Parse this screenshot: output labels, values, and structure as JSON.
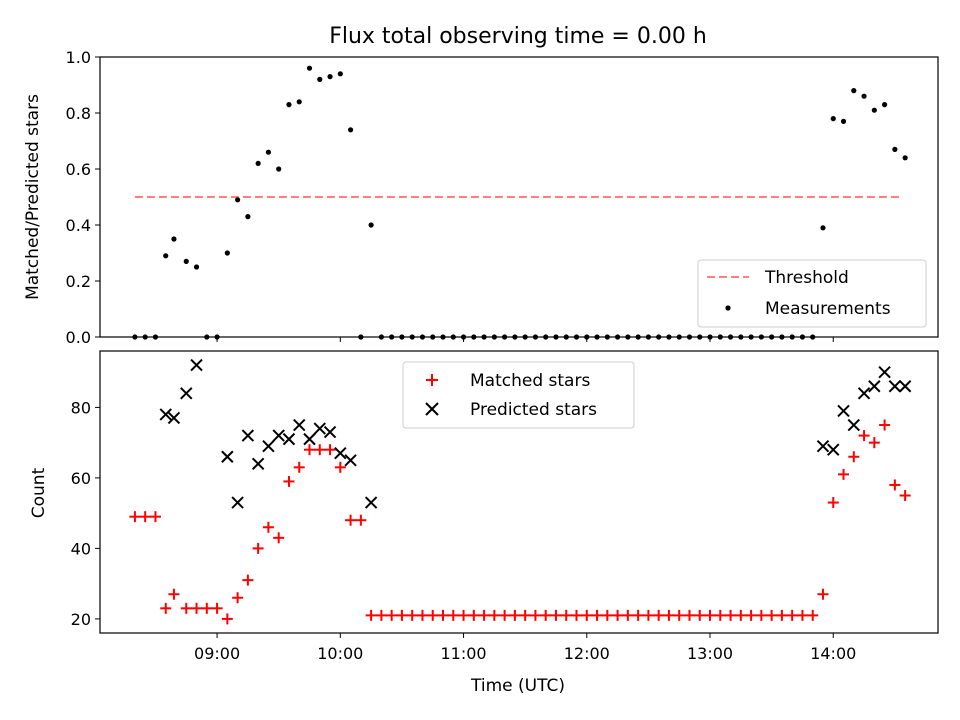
{
  "title": "Flux total observing time = 0.00 h",
  "chart_data": [
    {
      "type": "scatter",
      "ylabel": "Matched/Predicted stars",
      "xlabel": "",
      "ylim": [
        0,
        1.0
      ],
      "yticks": [
        "0.0",
        "0.2",
        "0.4",
        "0.6",
        "0.8",
        "1.0"
      ],
      "yticks_values": [
        0,
        0.2,
        0.4,
        0.6,
        0.8,
        1.0
      ],
      "legend_position": "lower-right",
      "grid": false,
      "threshold": {
        "name": "Threshold",
        "value": 0.5,
        "x_start": "08:20",
        "x_end": "14:33",
        "color": "#ff7f7f",
        "style": "dashed"
      },
      "series": [
        {
          "name": "Measurements",
          "color": "#000000",
          "marker": "dot",
          "points": [
            [
              "08:20",
              0.0
            ],
            [
              "08:25",
              0.0
            ],
            [
              "08:30",
              0.0
            ],
            [
              "08:35",
              0.29
            ],
            [
              "08:39",
              0.35
            ],
            [
              "08:45",
              0.27
            ],
            [
              "08:50",
              0.25
            ],
            [
              "08:55",
              0.0
            ],
            [
              "09:00",
              0.0
            ],
            [
              "09:05",
              0.3
            ],
            [
              "09:10",
              0.49
            ],
            [
              "09:15",
              0.43
            ],
            [
              "09:20",
              0.62
            ],
            [
              "09:25",
              0.66
            ],
            [
              "09:30",
              0.6
            ],
            [
              "09:35",
              0.83
            ],
            [
              "09:40",
              0.84
            ],
            [
              "09:45",
              0.96
            ],
            [
              "09:50",
              0.92
            ],
            [
              "09:55",
              0.93
            ],
            [
              "10:00",
              0.94
            ],
            [
              "10:05",
              0.74
            ],
            [
              "10:10",
              0.0
            ],
            [
              "10:15",
              0.4
            ],
            [
              "10:20",
              0.0
            ],
            [
              "10:25",
              0.0
            ],
            [
              "10:30",
              0.0
            ],
            [
              "10:35",
              0.0
            ],
            [
              "10:40",
              0.0
            ],
            [
              "10:45",
              0.0
            ],
            [
              "10:50",
              0.0
            ],
            [
              "10:55",
              0.0
            ],
            [
              "11:00",
              0.0
            ],
            [
              "11:05",
              0.0
            ],
            [
              "11:10",
              0.0
            ],
            [
              "11:15",
              0.0
            ],
            [
              "11:20",
              0.0
            ],
            [
              "11:25",
              0.0
            ],
            [
              "11:30",
              0.0
            ],
            [
              "11:35",
              0.0
            ],
            [
              "11:40",
              0.0
            ],
            [
              "11:45",
              0.0
            ],
            [
              "11:50",
              0.0
            ],
            [
              "11:55",
              0.0
            ],
            [
              "12:00",
              0.0
            ],
            [
              "12:05",
              0.0
            ],
            [
              "12:10",
              0.0
            ],
            [
              "12:15",
              0.0
            ],
            [
              "12:20",
              0.0
            ],
            [
              "12:25",
              0.0
            ],
            [
              "12:30",
              0.0
            ],
            [
              "12:35",
              0.0
            ],
            [
              "12:40",
              0.0
            ],
            [
              "12:45",
              0.0
            ],
            [
              "12:50",
              0.0
            ],
            [
              "12:55",
              0.0
            ],
            [
              "13:00",
              0.0
            ],
            [
              "13:05",
              0.0
            ],
            [
              "13:10",
              0.0
            ],
            [
              "13:15",
              0.0
            ],
            [
              "13:20",
              0.0
            ],
            [
              "13:25",
              0.0
            ],
            [
              "13:30",
              0.0
            ],
            [
              "13:35",
              0.0
            ],
            [
              "13:40",
              0.0
            ],
            [
              "13:45",
              0.0
            ],
            [
              "13:50",
              0.0
            ],
            [
              "13:55",
              0.39
            ],
            [
              "14:00",
              0.78
            ],
            [
              "14:05",
              0.77
            ],
            [
              "14:10",
              0.88
            ],
            [
              "14:15",
              0.86
            ],
            [
              "14:20",
              0.81
            ],
            [
              "14:25",
              0.83
            ],
            [
              "14:30",
              0.67
            ],
            [
              "14:35",
              0.64
            ]
          ]
        }
      ]
    },
    {
      "type": "scatter",
      "ylabel": "Count",
      "xlabel": "Time (UTC)",
      "ylim": [
        16,
        96
      ],
      "yticks": [
        "20",
        "40",
        "60",
        "80"
      ],
      "yticks_values": [
        20,
        40,
        60,
        80
      ],
      "xticks": [
        "09:00",
        "10:00",
        "11:00",
        "12:00",
        "13:00",
        "14:00"
      ],
      "legend_position": "upper-center",
      "grid": false,
      "series": [
        {
          "name": "Matched stars",
          "color": "#ff0000",
          "marker": "plus",
          "points": [
            [
              "08:20",
              49
            ],
            [
              "08:25",
              49
            ],
            [
              "08:30",
              49
            ],
            [
              "08:35",
              23
            ],
            [
              "08:39",
              27
            ],
            [
              "08:45",
              23
            ],
            [
              "08:50",
              23
            ],
            [
              "08:55",
              23
            ],
            [
              "09:00",
              23
            ],
            [
              "09:05",
              20
            ],
            [
              "09:10",
              26
            ],
            [
              "09:15",
              31
            ],
            [
              "09:20",
              40
            ],
            [
              "09:25",
              46
            ],
            [
              "09:30",
              43
            ],
            [
              "09:35",
              59
            ],
            [
              "09:40",
              63
            ],
            [
              "09:45",
              68
            ],
            [
              "09:50",
              68
            ],
            [
              "09:55",
              68
            ],
            [
              "10:00",
              63
            ],
            [
              "10:05",
              48
            ],
            [
              "10:10",
              48
            ],
            [
              "10:15",
              21
            ],
            [
              "10:20",
              21
            ],
            [
              "10:25",
              21
            ],
            [
              "10:30",
              21
            ],
            [
              "10:35",
              21
            ],
            [
              "10:40",
              21
            ],
            [
              "10:45",
              21
            ],
            [
              "10:50",
              21
            ],
            [
              "10:55",
              21
            ],
            [
              "11:00",
              21
            ],
            [
              "11:05",
              21
            ],
            [
              "11:10",
              21
            ],
            [
              "11:15",
              21
            ],
            [
              "11:20",
              21
            ],
            [
              "11:25",
              21
            ],
            [
              "11:30",
              21
            ],
            [
              "11:35",
              21
            ],
            [
              "11:40",
              21
            ],
            [
              "11:45",
              21
            ],
            [
              "11:50",
              21
            ],
            [
              "11:55",
              21
            ],
            [
              "12:00",
              21
            ],
            [
              "12:05",
              21
            ],
            [
              "12:10",
              21
            ],
            [
              "12:15",
              21
            ],
            [
              "12:20",
              21
            ],
            [
              "12:25",
              21
            ],
            [
              "12:30",
              21
            ],
            [
              "12:35",
              21
            ],
            [
              "12:40",
              21
            ],
            [
              "12:45",
              21
            ],
            [
              "12:50",
              21
            ],
            [
              "12:55",
              21
            ],
            [
              "13:00",
              21
            ],
            [
              "13:05",
              21
            ],
            [
              "13:10",
              21
            ],
            [
              "13:15",
              21
            ],
            [
              "13:20",
              21
            ],
            [
              "13:25",
              21
            ],
            [
              "13:30",
              21
            ],
            [
              "13:35",
              21
            ],
            [
              "13:40",
              21
            ],
            [
              "13:45",
              21
            ],
            [
              "13:50",
              21
            ],
            [
              "13:55",
              27
            ],
            [
              "14:00",
              53
            ],
            [
              "14:05",
              61
            ],
            [
              "14:10",
              66
            ],
            [
              "14:15",
              72
            ],
            [
              "14:20",
              70
            ],
            [
              "14:25",
              75
            ],
            [
              "14:30",
              58
            ],
            [
              "14:35",
              55
            ]
          ]
        },
        {
          "name": "Predicted stars",
          "color": "#000000",
          "marker": "x",
          "points": [
            [
              "08:35",
              78
            ],
            [
              "08:39",
              77
            ],
            [
              "08:45",
              84
            ],
            [
              "08:50",
              92
            ],
            [
              "09:05",
              66
            ],
            [
              "09:10",
              53
            ],
            [
              "09:15",
              72
            ],
            [
              "09:20",
              64
            ],
            [
              "09:25",
              69
            ],
            [
              "09:30",
              72
            ],
            [
              "09:35",
              71
            ],
            [
              "09:40",
              75
            ],
            [
              "09:45",
              71
            ],
            [
              "09:50",
              74
            ],
            [
              "09:55",
              73
            ],
            [
              "10:00",
              67
            ],
            [
              "10:05",
              65
            ],
            [
              "10:15",
              53
            ],
            [
              "13:55",
              69
            ],
            [
              "14:00",
              68
            ],
            [
              "14:05",
              79
            ],
            [
              "14:10",
              75
            ],
            [
              "14:15",
              84
            ],
            [
              "14:20",
              86
            ],
            [
              "14:25",
              90
            ],
            [
              "14:30",
              86
            ],
            [
              "14:35",
              86
            ]
          ]
        }
      ]
    }
  ]
}
